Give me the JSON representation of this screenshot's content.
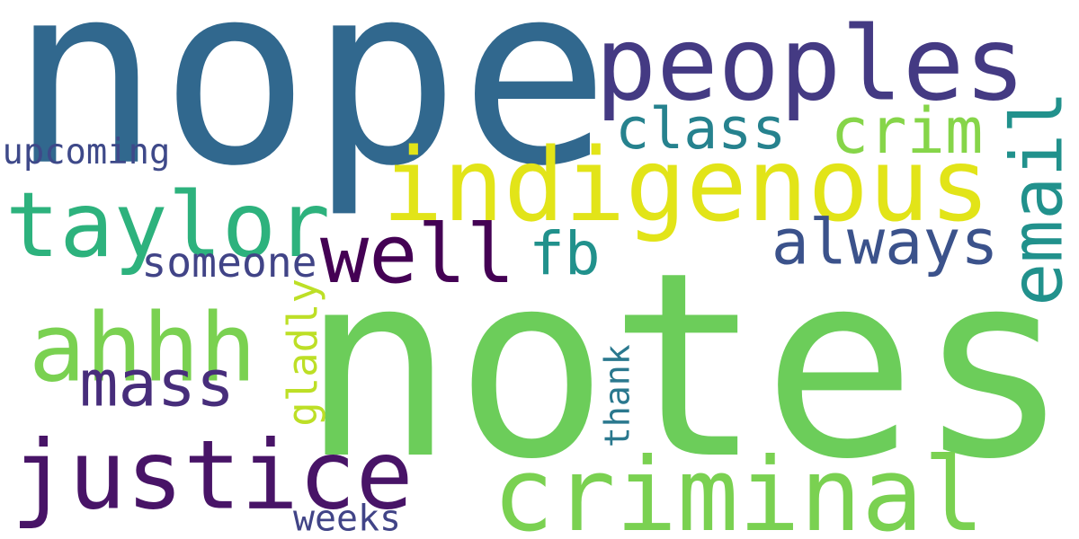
{
  "words": [
    {
      "text": "nope",
      "color": "#31688e",
      "orientation": "horizontal"
    },
    {
      "text": "notes",
      "color": "#6ccd5a",
      "orientation": "horizontal"
    },
    {
      "text": "peoples",
      "color": "#443a83",
      "orientation": "horizontal"
    },
    {
      "text": "indigenous",
      "color": "#e2e418",
      "orientation": "horizontal"
    },
    {
      "text": "taylor",
      "color": "#2db27d",
      "orientation": "horizontal"
    },
    {
      "text": "justice",
      "color": "#481467",
      "orientation": "horizontal"
    },
    {
      "text": "criminal",
      "color": "#7ad151",
      "orientation": "horizontal"
    },
    {
      "text": "ahhh",
      "color": "#7ad151",
      "orientation": "horizontal"
    },
    {
      "text": "well",
      "color": "#440154",
      "orientation": "horizontal"
    },
    {
      "text": "crim",
      "color": "#86d549",
      "orientation": "horizontal"
    },
    {
      "text": "class",
      "color": "#26828e",
      "orientation": "horizontal"
    },
    {
      "text": "email",
      "color": "#21918c",
      "orientation": "vertical"
    },
    {
      "text": "always",
      "color": "#3b528b",
      "orientation": "horizontal"
    },
    {
      "text": "fb",
      "color": "#21918c",
      "orientation": "horizontal"
    },
    {
      "text": "mass",
      "color": "#472d7b",
      "orientation": "horizontal"
    },
    {
      "text": "someone",
      "color": "#414487",
      "orientation": "horizontal"
    },
    {
      "text": "upcoming",
      "color": "#3e4989",
      "orientation": "horizontal"
    },
    {
      "text": "gladly",
      "color": "#bddf26",
      "orientation": "vertical"
    },
    {
      "text": "thank",
      "color": "#2a788e",
      "orientation": "vertical"
    },
    {
      "text": "weeks",
      "color": "#414487",
      "orientation": "horizontal"
    }
  ]
}
